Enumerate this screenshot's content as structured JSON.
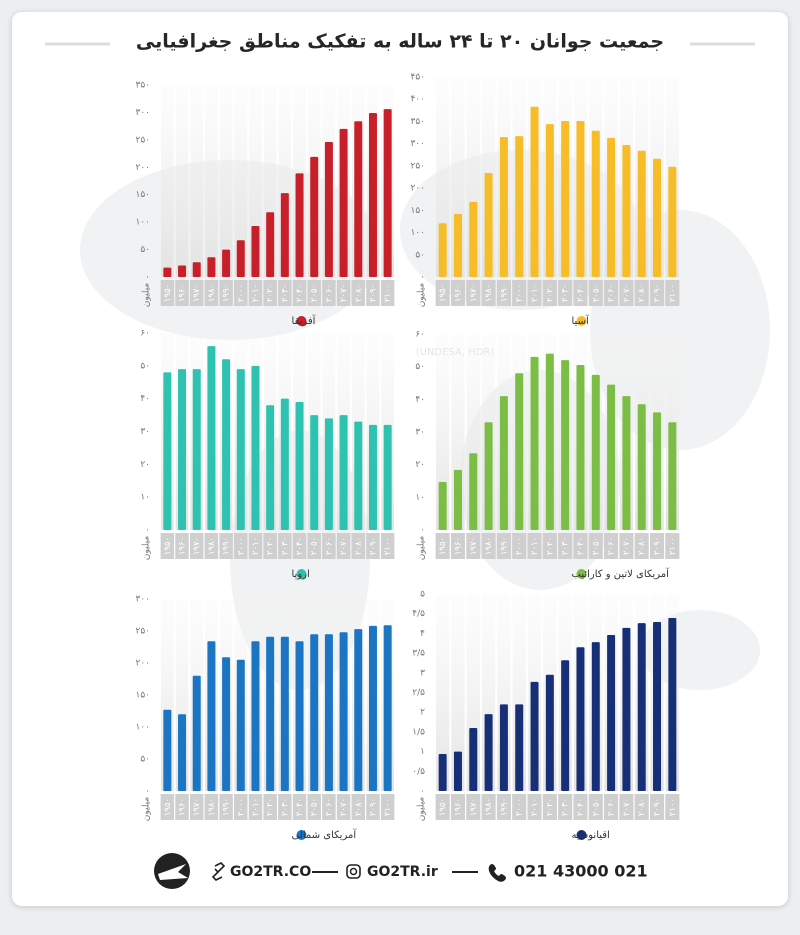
{
  "header": {
    "title": "جمعیت جوانان ۲۰ تا ۲۴ ساله به تفکیک مناطق جغرافیایی",
    "source": "(UNDESA, HDR)"
  },
  "chart_data": [
    {
      "type": "bar",
      "y_label": "میلیون",
      "categories": [
        "۱۹۵۰",
        "۱۹۶۰",
        "۱۹۷۰",
        "۱۹۸۰",
        "۱۹۹۰",
        "۲۰۰۰",
        "۲۰۱۰",
        "۲۰۲۰",
        "۲۰۳۰",
        "۲۰۴۰",
        "۲۰۵۰",
        "۲۰۶۰",
        "۲۰۷۰",
        "۲۰۸۰",
        "۲۰۹۰",
        "۲۱۰۰"
      ],
      "series": [
        {
          "name": "آفریقا",
          "color": "#c8202a",
          "values": [
            17,
            21,
            27,
            36,
            50,
            67,
            93,
            118,
            153,
            189,
            219,
            246,
            270,
            284,
            299,
            306
          ]
        }
      ],
      "ylim": [
        0,
        350
      ],
      "yticks": [
        {
          "value": 0,
          "label": "۰"
        },
        {
          "value": 50,
          "label": "۵۰"
        },
        {
          "value": 100,
          "label": "۱۰۰"
        },
        {
          "value": 150,
          "label": "۱۵۰"
        },
        {
          "value": 200,
          "label": "۲۰۰"
        },
        {
          "value": 250,
          "label": "۲۵۰"
        },
        {
          "value": 300,
          "label": "۳۰۰"
        },
        {
          "value": 350,
          "label": "۳۵۰"
        }
      ]
    },
    {
      "type": "bar",
      "y_label": "میلیون",
      "categories": [
        "۱۹۵۰",
        "۱۹۶۰",
        "۱۹۷۰",
        "۱۹۸۰",
        "۱۹۹۰",
        "۲۰۰۰",
        "۲۰۱۰",
        "۲۰۲۰",
        "۲۰۳۰",
        "۲۰۴۰",
        "۲۰۵۰",
        "۲۰۶۰",
        "۲۰۷۰",
        "۲۰۸۰",
        "۲۰۹۰",
        "۲۱۰۰"
      ],
      "series": [
        {
          "name": "آسیا",
          "color": "#f6bd28",
          "values": [
            121,
            142,
            169,
            234,
            315,
            317,
            383,
            344,
            351,
            351,
            329,
            313,
            297,
            284,
            266,
            248
          ]
        }
      ],
      "ylim": [
        0,
        450
      ],
      "yticks": [
        {
          "value": 0,
          "label": "۰"
        },
        {
          "value": 50,
          "label": "۵۰"
        },
        {
          "value": 100,
          "label": "۱۰۰"
        },
        {
          "value": 150,
          "label": "۱۵۰"
        },
        {
          "value": 200,
          "label": "۲۰۰"
        },
        {
          "value": 250,
          "label": "۲۵۰"
        },
        {
          "value": 300,
          "label": "۳۰۰"
        },
        {
          "value": 350,
          "label": "۳۵۰"
        },
        {
          "value": 400,
          "label": "۴۰۰"
        },
        {
          "value": 450,
          "label": "۴۵۰"
        }
      ]
    },
    {
      "type": "bar",
      "y_label": "میلیون",
      "categories": [
        "۱۹۵۰",
        "۱۹۶۰",
        "۱۹۷۰",
        "۱۹۸۰",
        "۱۹۹۰",
        "۲۰۰۰",
        "۲۰۱۰",
        "۲۰۲۰",
        "۲۰۳۰",
        "۲۰۴۰",
        "۲۰۵۰",
        "۲۰۶۰",
        "۲۰۷۰",
        "۲۰۸۰",
        "۲۰۹۰",
        "۲۱۰۰"
      ],
      "series": [
        {
          "name": "اروپا",
          "color": "#2ec3b0",
          "values": [
            48,
            49,
            49,
            56,
            52,
            49,
            50,
            38,
            40,
            39,
            35,
            34,
            35,
            33,
            32,
            32
          ]
        }
      ],
      "ylim": [
        0,
        60
      ],
      "yticks": [
        {
          "value": 0,
          "label": "۰"
        },
        {
          "value": 10,
          "label": "۱۰"
        },
        {
          "value": 20,
          "label": "۲۰"
        },
        {
          "value": 30,
          "label": "۳۰"
        },
        {
          "value": 40,
          "label": "۴۰"
        },
        {
          "value": 50,
          "label": "۵۰"
        },
        {
          "value": 60,
          "label": "۶۰"
        }
      ]
    },
    {
      "type": "bar",
      "y_label": "میلیون",
      "categories": [
        "۱۹۵۰",
        "۱۹۶۰",
        "۱۹۷۰",
        "۱۹۸۰",
        "۱۹۹۰",
        "۲۰۰۰",
        "۲۰۱۰",
        "۲۰۲۰",
        "۲۰۳۰",
        "۲۰۴۰",
        "۲۰۵۰",
        "۲۰۶۰",
        "۲۰۷۰",
        "۲۰۸۰",
        "۲۰۹۰",
        "۲۱۰۰"
      ],
      "series": [
        {
          "name": "آمریکای لاتین و کارائیب",
          "color": "#7cbd45",
          "values": [
            14.7,
            18.4,
            23.5,
            33,
            41,
            48,
            53,
            54,
            52,
            50.5,
            47.5,
            44.5,
            41,
            38.5,
            36,
            33
          ]
        }
      ],
      "ylim": [
        0,
        60
      ],
      "yticks": [
        {
          "value": 0,
          "label": "۰"
        },
        {
          "value": 10,
          "label": "۱۰"
        },
        {
          "value": 20,
          "label": "۲۰"
        },
        {
          "value": 30,
          "label": "۳۰"
        },
        {
          "value": 40,
          "label": "۴۰"
        },
        {
          "value": 50,
          "label": "۵۰"
        },
        {
          "value": 60,
          "label": "۶۰"
        }
      ]
    },
    {
      "type": "bar",
      "y_label": "میلیون",
      "categories": [
        "۱۹۵۰",
        "۱۹۶۰",
        "۱۹۷۰",
        "۱۹۸۰",
        "۱۹۹۰",
        "۲۰۰۰",
        "۲۰۱۰",
        "۲۰۲۰",
        "۲۰۳۰",
        "۲۰۴۰",
        "۲۰۵۰",
        "۲۰۶۰",
        "۲۰۷۰",
        "۲۰۸۰",
        "۲۰۹۰",
        "۲۱۰۰"
      ],
      "series": [
        {
          "name": "آمریکای شمالی",
          "color": "#1b75c3",
          "values": [
            127,
            120,
            180,
            234,
            209,
            205,
            234,
            241,
            241,
            234,
            245,
            245,
            248,
            253,
            258,
            259
          ]
        }
      ],
      "ylim": [
        0,
        300
      ],
      "yticks": [
        {
          "value": 0,
          "label": "۰"
        },
        {
          "value": 50,
          "label": "۵۰"
        },
        {
          "value": 100,
          "label": "۱۰۰"
        },
        {
          "value": 150,
          "label": "۱۵۰"
        },
        {
          "value": 200,
          "label": "۲۰۰"
        },
        {
          "value": 250,
          "label": "۲۵۰"
        },
        {
          "value": 300,
          "label": "۳۰۰"
        }
      ]
    },
    {
      "type": "bar",
      "y_label": "میلیون",
      "categories": [
        "۱۹۵۰",
        "۱۹۶۰",
        "۱۹۷۰",
        "۱۹۸۰",
        "۱۹۹۰",
        "۲۰۰۰",
        "۲۰۱۰",
        "۲۰۲۰",
        "۲۰۳۰",
        "۲۰۴۰",
        "۲۰۵۰",
        "۲۰۶۰",
        "۲۰۷۰",
        "۲۰۸۰",
        "۲۰۹۰",
        "۲۱۰۰"
      ],
      "series": [
        {
          "name": "اقیانوسیه",
          "color": "#172f77",
          "values": [
            0.94,
            1.0,
            1.6,
            1.95,
            2.2,
            2.2,
            2.77,
            2.95,
            3.32,
            3.65,
            3.78,
            3.96,
            4.14,
            4.26,
            4.29,
            4.39
          ]
        }
      ],
      "ylim": [
        0,
        5
      ],
      "yticks": [
        {
          "value": 0,
          "label": "۰"
        },
        {
          "value": 0.5,
          "label": "۰/۵"
        },
        {
          "value": 1,
          "label": "۱"
        },
        {
          "value": 1.5,
          "label": "۱/۵"
        },
        {
          "value": 2,
          "label": "۲"
        },
        {
          "value": 2.5,
          "label": "۲/۵"
        },
        {
          "value": 3,
          "label": "۳"
        },
        {
          "value": 3.5,
          "label": "۳/۵"
        },
        {
          "value": 4,
          "label": "۴"
        },
        {
          "value": 4.5,
          "label": "۴/۵"
        },
        {
          "value": 5,
          "label": "۵"
        }
      ]
    }
  ],
  "footer": {
    "website": "GO2TR.CO",
    "instagram": "GO2TR.ir",
    "phone": "021 43000 021"
  }
}
